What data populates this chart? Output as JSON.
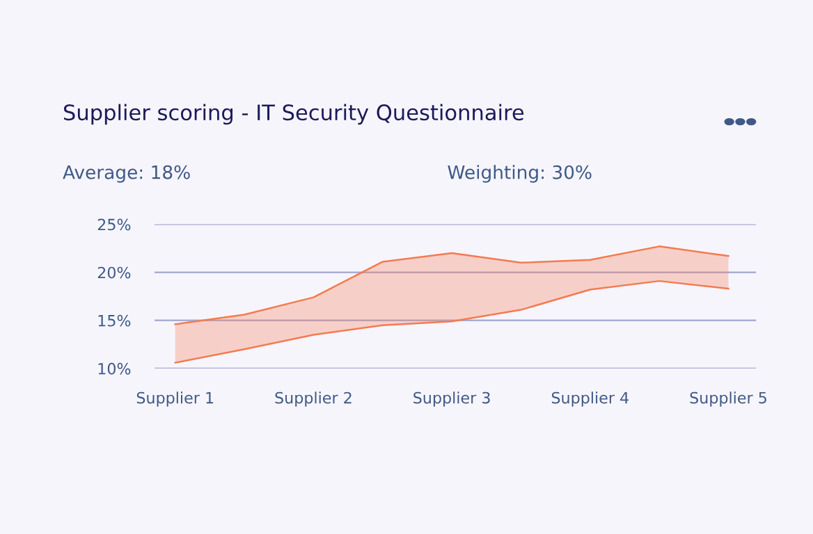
{
  "chart_data": {
    "type": "line",
    "title": "Supplier scoring - IT Security Questionnaire",
    "annotations": [
      "Average: 18%",
      "Weighting: 30%"
    ],
    "categories": [
      "Supplier 1",
      null,
      "Supplier 2",
      null,
      "Supplier 3",
      null,
      "Supplier 4",
      null,
      "Supplier 5"
    ],
    "series": [
      {
        "color": "#f47a50",
        "values": [
          14.6,
          15.6,
          17.4,
          21.1,
          22.0,
          21.0,
          21.3,
          22.7,
          21.7
        ],
        "lower": [
          10.6,
          12.0,
          13.5,
          14.5,
          14.9,
          16.1,
          18.2,
          19.1,
          18.3
        ],
        "upper": [
          14.6,
          15.6,
          17.4,
          21.1,
          22.0,
          21.0,
          21.3,
          22.7,
          21.7
        ]
      },
      {
        "color": "#f47a50",
        "values": [
          10.6,
          12.0,
          13.5,
          14.5,
          14.9,
          16.1,
          18.2,
          19.1,
          18.3
        ]
      }
    ],
    "ylim": [
      10,
      25
    ],
    "yticks": [
      {
        "value": 10,
        "label": "10%"
      },
      {
        "value": 15,
        "label": "15%"
      },
      {
        "value": 20,
        "label": "20%"
      },
      {
        "value": 25,
        "label": "25%"
      }
    ],
    "grid": "y",
    "legend": false,
    "marker": "none",
    "line_style": "solid"
  }
}
